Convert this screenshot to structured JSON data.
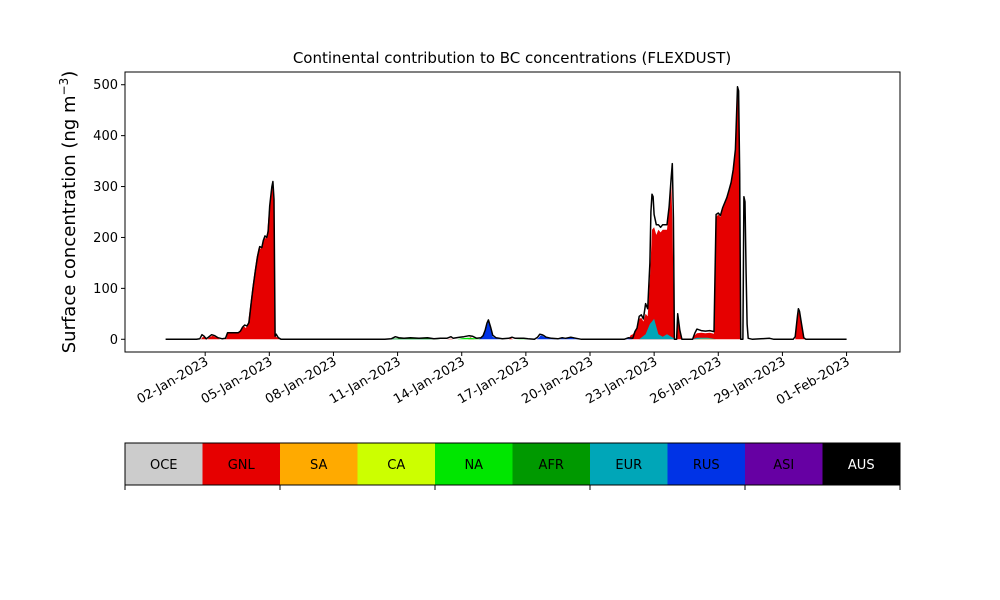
{
  "chart_data": {
    "type": "area",
    "title": "Continental contribution to BC concentrations (FLEXDUST)",
    "ylabel": "Surface concentration (ng m",
    "ylabel_superscript": "−3",
    "ylabel_close": ")",
    "xlabel": "",
    "ylim": [
      -25,
      525
    ],
    "xlim": [
      -2.75,
      33.5
    ],
    "yticks": [
      0,
      100,
      200,
      300,
      400,
      500
    ],
    "xticks": [
      {
        "day": 1,
        "label": "02-Jan-2023"
      },
      {
        "day": 4,
        "label": "05-Jan-2023"
      },
      {
        "day": 7,
        "label": "08-Jan-2023"
      },
      {
        "day": 10,
        "label": "11-Jan-2023"
      },
      {
        "day": 13,
        "label": "14-Jan-2023"
      },
      {
        "day": 16,
        "label": "17-Jan-2023"
      },
      {
        "day": 19,
        "label": "20-Jan-2023"
      },
      {
        "day": 22,
        "label": "23-Jan-2023"
      },
      {
        "day": 25,
        "label": "26-Jan-2023"
      },
      {
        "day": 28,
        "label": "29-Jan-2023"
      },
      {
        "day": 31,
        "label": "01-Feb-2023"
      }
    ],
    "x_axis_note": "x values are days after 01-Jan-2023",
    "grid": false,
    "categories": [
      "OCE",
      "GNL",
      "SA",
      "CA",
      "NA",
      "AFR",
      "EUR",
      "RUS",
      "ASI",
      "AUS"
    ],
    "colors": [
      "#cccccc",
      "#e60000",
      "#ffaa00",
      "#ccff00",
      "#00e600",
      "#009900",
      "#00a6b8",
      "#0033e6",
      "#6600a3",
      "#000000"
    ],
    "legend_text_colors": [
      "#000000",
      "#000000",
      "#000000",
      "#000000",
      "#000000",
      "#000000",
      "#000000",
      "#000000",
      "#000000",
      "#ffffff"
    ],
    "series": [
      {
        "name": "GNL",
        "points": [
          [
            0,
            0
          ],
          [
            0.8,
            0
          ],
          [
            0.9,
            5
          ],
          [
            1.0,
            3
          ],
          [
            1.1,
            0
          ],
          [
            1.2,
            4
          ],
          [
            1.35,
            7
          ],
          [
            1.5,
            4
          ],
          [
            1.7,
            0
          ],
          [
            1.9,
            0
          ],
          [
            2.0,
            2
          ],
          [
            2.05,
            12
          ],
          [
            2.3,
            12
          ],
          [
            2.5,
            12
          ],
          [
            2.6,
            15
          ],
          [
            2.7,
            20
          ],
          [
            2.8,
            26
          ],
          [
            2.9,
            22
          ],
          [
            3.0,
            30
          ],
          [
            3.1,
            65
          ],
          [
            3.2,
            100
          ],
          [
            3.3,
            130
          ],
          [
            3.4,
            160
          ],
          [
            3.5,
            180
          ],
          [
            3.6,
            178
          ],
          [
            3.7,
            192
          ],
          [
            3.75,
            200
          ],
          [
            3.85,
            198
          ],
          [
            3.9,
            210
          ],
          [
            4.0,
            260
          ],
          [
            4.05,
            280
          ],
          [
            4.1,
            295
          ],
          [
            4.15,
            305
          ],
          [
            4.2,
            270
          ],
          [
            4.25,
            5
          ],
          [
            4.3,
            6
          ],
          [
            4.4,
            2
          ],
          [
            4.5,
            0
          ],
          [
            9.8,
            0
          ],
          [
            10.3,
            0
          ],
          [
            12.3,
            0
          ],
          [
            12.5,
            1
          ],
          [
            12.6,
            0
          ],
          [
            13.3,
            0
          ],
          [
            13.4,
            4
          ],
          [
            13.6,
            0
          ],
          [
            15.2,
            0
          ],
          [
            15.3,
            2
          ],
          [
            15.4,
            0
          ],
          [
            20.8,
            0
          ],
          [
            20.9,
            8
          ],
          [
            21.0,
            10
          ],
          [
            21.1,
            15
          ],
          [
            21.2,
            20
          ],
          [
            21.3,
            40
          ],
          [
            21.4,
            42
          ],
          [
            21.5,
            35
          ],
          [
            21.6,
            50
          ],
          [
            21.7,
            45
          ],
          [
            21.8,
            120
          ],
          [
            21.9,
            215
          ],
          [
            22.0,
            220
          ],
          [
            22.1,
            205
          ],
          [
            22.2,
            215
          ],
          [
            22.3,
            210
          ],
          [
            22.4,
            215
          ],
          [
            22.6,
            215
          ],
          [
            22.7,
            255
          ],
          [
            22.8,
            310
          ],
          [
            22.85,
            240
          ],
          [
            22.95,
            0
          ],
          [
            23.05,
            0
          ],
          [
            23.1,
            40
          ],
          [
            23.2,
            15
          ],
          [
            23.3,
            0
          ],
          [
            23.8,
            0
          ],
          [
            23.9,
            8
          ],
          [
            24.0,
            12
          ],
          [
            24.2,
            13
          ],
          [
            24.4,
            12
          ],
          [
            24.6,
            13
          ],
          [
            24.8,
            11
          ],
          [
            24.9,
            240
          ],
          [
            25.0,
            245
          ],
          [
            25.1,
            240
          ],
          [
            25.2,
            255
          ],
          [
            25.3,
            265
          ],
          [
            25.4,
            275
          ],
          [
            25.5,
            290
          ],
          [
            25.6,
            305
          ],
          [
            25.7,
            330
          ],
          [
            25.8,
            370
          ],
          [
            25.85,
            430
          ],
          [
            25.9,
            480
          ],
          [
            25.95,
            470
          ],
          [
            26.0,
            320
          ],
          [
            26.05,
            0
          ],
          [
            26.2,
            0
          ],
          [
            26.3,
            0
          ],
          [
            26.4,
            0
          ],
          [
            26.6,
            0
          ],
          [
            27.5,
            0
          ],
          [
            28.6,
            0
          ],
          [
            28.7,
            40
          ],
          [
            28.75,
            55
          ],
          [
            28.8,
            50
          ],
          [
            28.9,
            25
          ],
          [
            29.0,
            2
          ],
          [
            29.1,
            0
          ],
          [
            30.5,
            0
          ],
          [
            31.0,
            0
          ]
        ]
      },
      {
        "name": "EUR",
        "points": [
          [
            0,
            0
          ],
          [
            9.5,
            0
          ],
          [
            10.1,
            2
          ],
          [
            10.5,
            1
          ],
          [
            11.3,
            2
          ],
          [
            11.6,
            0
          ],
          [
            13.0,
            0
          ],
          [
            15.0,
            0
          ],
          [
            18.0,
            0
          ],
          [
            21.3,
            0
          ],
          [
            21.6,
            10
          ],
          [
            21.8,
            30
          ],
          [
            22.0,
            40
          ],
          [
            22.2,
            10
          ],
          [
            22.4,
            5
          ],
          [
            22.6,
            10
          ],
          [
            22.8,
            5
          ],
          [
            23.0,
            0
          ],
          [
            23.8,
            0
          ],
          [
            24.0,
            3
          ],
          [
            24.5,
            3
          ],
          [
            24.9,
            0
          ],
          [
            31.0,
            0
          ]
        ]
      },
      {
        "name": "RUS",
        "points": [
          [
            0,
            0
          ],
          [
            13.8,
            0
          ],
          [
            14.0,
            5
          ],
          [
            14.1,
            15
          ],
          [
            14.2,
            30
          ],
          [
            14.25,
            35
          ],
          [
            14.35,
            20
          ],
          [
            14.45,
            5
          ],
          [
            14.6,
            2
          ],
          [
            14.8,
            0
          ],
          [
            16.5,
            0
          ],
          [
            16.6,
            3
          ],
          [
            16.7,
            8
          ],
          [
            16.8,
            6
          ],
          [
            16.95,
            3
          ],
          [
            17.2,
            1
          ],
          [
            17.5,
            0
          ],
          [
            17.7,
            2
          ],
          [
            17.8,
            1
          ],
          [
            18.1,
            3
          ],
          [
            18.3,
            1
          ],
          [
            18.6,
            0
          ],
          [
            20.0,
            0
          ],
          [
            20.6,
            0
          ],
          [
            20.8,
            2
          ],
          [
            21.0,
            0
          ],
          [
            31.0,
            0
          ]
        ]
      },
      {
        "name": "AFR",
        "points": [
          [
            0,
            0
          ],
          [
            9.5,
            0
          ],
          [
            9.8,
            1
          ],
          [
            10.2,
            2
          ],
          [
            10.8,
            2
          ],
          [
            11.3,
            2
          ],
          [
            11.7,
            1
          ],
          [
            12.0,
            0
          ],
          [
            31.0,
            0
          ]
        ]
      },
      {
        "name": "NA",
        "points": [
          [
            0,
            0
          ],
          [
            12.8,
            0
          ],
          [
            13.0,
            2
          ],
          [
            13.3,
            3
          ],
          [
            13.6,
            2
          ],
          [
            13.9,
            0
          ],
          [
            15.5,
            0
          ],
          [
            15.9,
            1
          ],
          [
            16.1,
            0
          ],
          [
            31.0,
            0
          ]
        ]
      },
      {
        "name": "SA",
        "points": [
          [
            0,
            0
          ],
          [
            23.9,
            0
          ],
          [
            24.2,
            1
          ],
          [
            24.6,
            1
          ],
          [
            24.9,
            0
          ],
          [
            31.0,
            0
          ]
        ]
      }
    ],
    "total_outline": [
      [
        -0.85,
        0
      ],
      [
        0,
        0
      ],
      [
        0.6,
        0
      ],
      [
        0.75,
        1
      ],
      [
        0.85,
        9
      ],
      [
        0.95,
        6
      ],
      [
        1.05,
        1
      ],
      [
        1.15,
        4
      ],
      [
        1.3,
        9
      ],
      [
        1.45,
        7
      ],
      [
        1.6,
        3
      ],
      [
        1.8,
        1
      ],
      [
        1.95,
        2
      ],
      [
        2.05,
        13
      ],
      [
        2.3,
        13
      ],
      [
        2.55,
        13
      ],
      [
        2.65,
        16
      ],
      [
        2.75,
        24
      ],
      [
        2.85,
        28
      ],
      [
        2.95,
        26
      ],
      [
        3.05,
        33
      ],
      [
        3.15,
        70
      ],
      [
        3.25,
        105
      ],
      [
        3.35,
        135
      ],
      [
        3.45,
        163
      ],
      [
        3.55,
        182
      ],
      [
        3.65,
        180
      ],
      [
        3.72,
        194
      ],
      [
        3.8,
        203
      ],
      [
        3.88,
        200
      ],
      [
        3.95,
        212
      ],
      [
        4.02,
        262
      ],
      [
        4.08,
        285
      ],
      [
        4.12,
        300
      ],
      [
        4.17,
        310
      ],
      [
        4.22,
        275
      ],
      [
        4.27,
        6
      ],
      [
        4.32,
        10
      ],
      [
        4.42,
        3
      ],
      [
        4.55,
        0
      ],
      [
        6.0,
        0
      ],
      [
        7.0,
        0
      ],
      [
        8.0,
        0
      ],
      [
        9.0,
        0
      ],
      [
        9.4,
        0
      ],
      [
        9.7,
        1
      ],
      [
        9.9,
        5
      ],
      [
        10.05,
        3
      ],
      [
        10.3,
        2
      ],
      [
        10.6,
        3
      ],
      [
        11.0,
        2
      ],
      [
        11.4,
        3
      ],
      [
        11.7,
        1
      ],
      [
        12.0,
        2
      ],
      [
        12.3,
        2
      ],
      [
        12.5,
        5
      ],
      [
        12.6,
        2
      ],
      [
        12.9,
        4
      ],
      [
        13.1,
        5
      ],
      [
        13.35,
        7
      ],
      [
        13.5,
        6
      ],
      [
        13.7,
        2
      ],
      [
        13.9,
        3
      ],
      [
        14.0,
        7
      ],
      [
        14.1,
        18
      ],
      [
        14.18,
        32
      ],
      [
        14.25,
        38
      ],
      [
        14.35,
        24
      ],
      [
        14.45,
        8
      ],
      [
        14.6,
        3
      ],
      [
        14.9,
        1
      ],
      [
        15.2,
        2
      ],
      [
        15.35,
        4
      ],
      [
        15.5,
        2
      ],
      [
        15.9,
        2
      ],
      [
        16.1,
        1
      ],
      [
        16.4,
        0
      ],
      [
        16.55,
        4
      ],
      [
        16.65,
        10
      ],
      [
        16.75,
        9
      ],
      [
        16.85,
        7
      ],
      [
        16.95,
        4
      ],
      [
        17.2,
        2
      ],
      [
        17.5,
        1
      ],
      [
        17.7,
        3
      ],
      [
        17.85,
        2
      ],
      [
        18.1,
        4
      ],
      [
        18.35,
        2
      ],
      [
        18.6,
        0
      ],
      [
        19.5,
        0
      ],
      [
        20.6,
        0
      ],
      [
        20.8,
        3
      ],
      [
        21.0,
        2
      ],
      [
        21.1,
        15
      ],
      [
        21.2,
        22
      ],
      [
        21.3,
        45
      ],
      [
        21.4,
        48
      ],
      [
        21.5,
        40
      ],
      [
        21.6,
        70
      ],
      [
        21.7,
        60
      ],
      [
        21.8,
        150
      ],
      [
        21.85,
        250
      ],
      [
        21.9,
        285
      ],
      [
        21.95,
        280
      ],
      [
        22.0,
        245
      ],
      [
        22.1,
        225
      ],
      [
        22.2,
        225
      ],
      [
        22.3,
        220
      ],
      [
        22.4,
        225
      ],
      [
        22.6,
        225
      ],
      [
        22.7,
        260
      ],
      [
        22.8,
        318
      ],
      [
        22.85,
        345
      ],
      [
        22.9,
        240
      ],
      [
        22.95,
        0
      ],
      [
        23.05,
        0
      ],
      [
        23.1,
        50
      ],
      [
        23.2,
        18
      ],
      [
        23.3,
        0
      ],
      [
        23.8,
        0
      ],
      [
        23.9,
        12
      ],
      [
        24.0,
        20
      ],
      [
        24.2,
        17
      ],
      [
        24.4,
        16
      ],
      [
        24.6,
        17
      ],
      [
        24.8,
        15
      ],
      [
        24.9,
        245
      ],
      [
        25.0,
        248
      ],
      [
        25.1,
        243
      ],
      [
        25.2,
        258
      ],
      [
        25.3,
        268
      ],
      [
        25.4,
        278
      ],
      [
        25.5,
        293
      ],
      [
        25.6,
        308
      ],
      [
        25.7,
        333
      ],
      [
        25.8,
        373
      ],
      [
        25.85,
        432
      ],
      [
        25.9,
        496
      ],
      [
        25.95,
        488
      ],
      [
        26.0,
        325
      ],
      [
        26.05,
        0
      ],
      [
        26.15,
        0
      ],
      [
        26.2,
        280
      ],
      [
        26.25,
        270
      ],
      [
        26.3,
        130
      ],
      [
        26.35,
        30
      ],
      [
        26.4,
        2
      ],
      [
        26.6,
        0
      ],
      [
        27.0,
        1
      ],
      [
        27.4,
        2
      ],
      [
        27.6,
        0
      ],
      [
        28.5,
        0
      ],
      [
        28.6,
        5
      ],
      [
        28.7,
        45
      ],
      [
        28.75,
        60
      ],
      [
        28.8,
        55
      ],
      [
        28.9,
        28
      ],
      [
        29.0,
        3
      ],
      [
        29.1,
        0
      ],
      [
        30.0,
        0
      ],
      [
        31.0,
        0
      ]
    ]
  }
}
